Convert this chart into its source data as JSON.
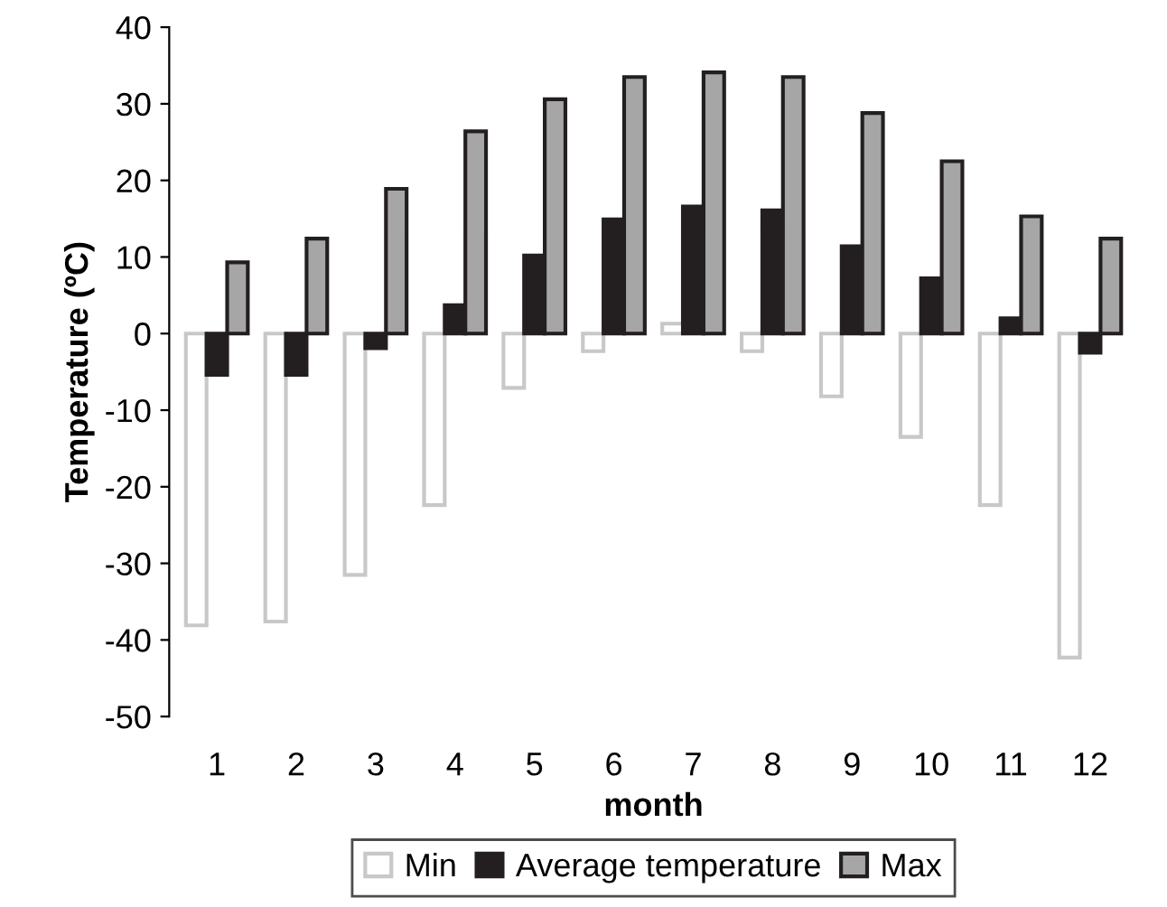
{
  "chart_data": {
    "type": "bar",
    "xlabel": "month",
    "ylabel": "Temperature (ºC)",
    "categories": [
      "1",
      "2",
      "3",
      "4",
      "5",
      "6",
      "7",
      "8",
      "9",
      "10",
      "11",
      "12"
    ],
    "series": [
      {
        "name": "Min",
        "color": "#ffffff",
        "values": [
          -38.1,
          -37.6,
          -31.5,
          -22.4,
          -7.1,
          -2.3,
          1.3,
          -2.3,
          -8.2,
          -13.5,
          -22.4,
          -42.3
        ]
      },
      {
        "name": "Average temperature",
        "color": "#231f20",
        "values": [
          -5.4,
          -5.4,
          -1.9,
          3.7,
          10.2,
          14.9,
          16.6,
          16.1,
          11.4,
          7.2,
          2.0,
          -2.5
        ]
      },
      {
        "name": "Max",
        "color": "#a6a6a6",
        "values": [
          9.3,
          12.4,
          18.9,
          26.4,
          30.6,
          33.5,
          34.1,
          33.5,
          28.8,
          22.5,
          15.3,
          12.4
        ]
      }
    ],
    "ylim": [
      -50,
      40
    ],
    "yticks": [
      -50,
      -40,
      -30,
      -20,
      -10,
      0,
      10,
      20,
      30,
      40
    ],
    "grid": false,
    "legend": "bottom"
  }
}
